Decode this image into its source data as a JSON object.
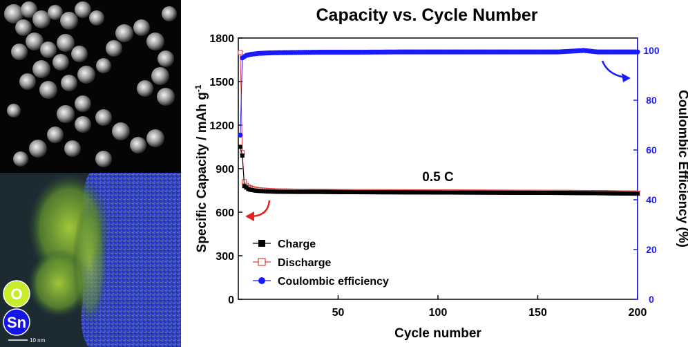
{
  "left_panel": {
    "element_labels": [
      "O",
      "Sn"
    ],
    "element_colors": [
      "#c7ec2a",
      "#1414e6"
    ],
    "scale_bar_label": "10 nm"
  },
  "chart_data": {
    "type": "line",
    "title": "Capacity vs. Cycle Number",
    "xlabel": "Cycle number",
    "ylabel_left": "Specific Capacity / mAh g",
    "ylabel_left_superscript": "-1",
    "ylabel_right": "Coulombic Efficiency (%)",
    "xlim": [
      0,
      200
    ],
    "ylim_left": [
      0,
      1800
    ],
    "ylim_right": [
      0,
      105
    ],
    "xticks": [
      50,
      100,
      150,
      200
    ],
    "yticks_left": [
      0,
      300,
      600,
      900,
      1200,
      1500,
      1800
    ],
    "yticks_right": [
      0,
      20,
      40,
      60,
      80,
      100
    ],
    "annotation": "0.5 C",
    "legend_position": "bottom-left",
    "series": [
      {
        "name": "Charge",
        "axis": "left",
        "color": "#000000",
        "marker": "filled-square",
        "x": [
          1,
          2,
          3,
          4,
          5,
          6,
          8,
          10,
          15,
          20,
          30,
          40,
          50,
          60,
          80,
          100,
          120,
          140,
          160,
          180,
          200
        ],
        "y": [
          1050,
          990,
          780,
          770,
          760,
          755,
          750,
          747,
          743,
          741,
          740,
          740,
          739,
          738,
          737,
          736,
          735,
          734,
          733,
          731,
          728
        ]
      },
      {
        "name": "Discharge",
        "axis": "left",
        "color": "#e03a3a",
        "marker": "open-square",
        "x": [
          1,
          2,
          3,
          4,
          5,
          6,
          8,
          10,
          15,
          20,
          30,
          40,
          50,
          60,
          80,
          100,
          120,
          140,
          160,
          180,
          200
        ],
        "y": [
          1700,
          1010,
          810,
          785,
          775,
          768,
          760,
          755,
          750,
          747,
          745,
          744,
          743,
          742,
          741,
          740,
          739,
          738,
          737,
          735,
          732
        ]
      },
      {
        "name": "Coulombic efficiency",
        "axis": "right",
        "color": "#1a1aff",
        "marker": "filled-circle",
        "x": [
          1,
          2,
          3,
          4,
          5,
          6,
          8,
          10,
          15,
          20,
          30,
          40,
          50,
          60,
          80,
          100,
          120,
          140,
          160,
          173,
          180,
          200
        ],
        "y": [
          66,
          97,
          97.5,
          98,
          98.2,
          98.4,
          98.6,
          98.8,
          99.0,
          99.1,
          99.2,
          99.3,
          99.3,
          99.3,
          99.4,
          99.4,
          99.4,
          99.4,
          99.4,
          100,
          99.4,
          99.4
        ]
      }
    ]
  }
}
